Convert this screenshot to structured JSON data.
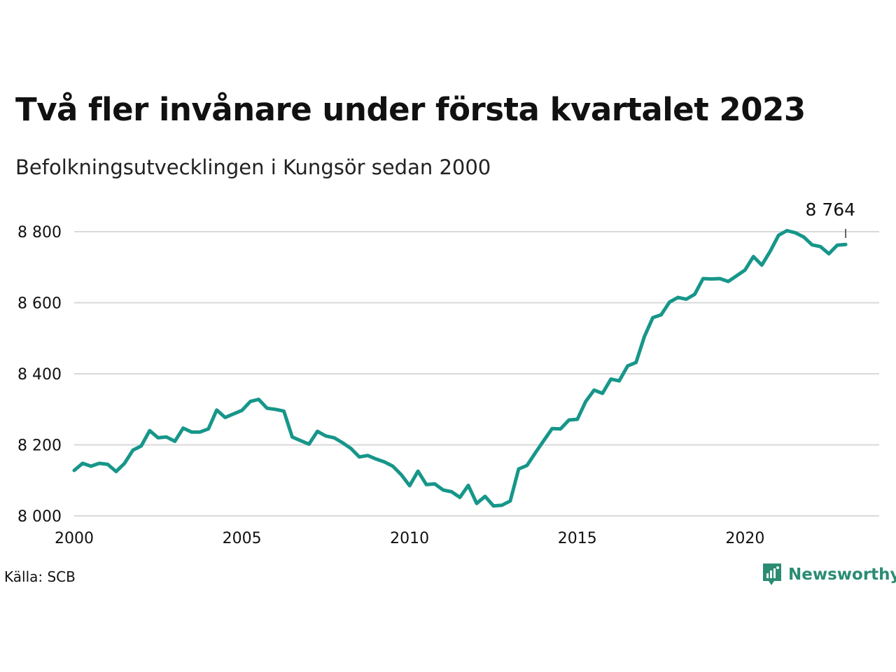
{
  "chart_data": {
    "type": "line",
    "title": "Två fler invånare under första kvartalet 2023",
    "subtitle": "Befolkningsutvecklingen i Kungsör sedan 2000",
    "xlabel": "",
    "ylabel": "",
    "xlim": [
      2000,
      2024
    ],
    "ylim": [
      8000,
      8850
    ],
    "x_ticks": [
      2000,
      2005,
      2010,
      2015,
      2020
    ],
    "x_tick_labels": [
      "2000",
      "2005",
      "2010",
      "2015",
      "2020"
    ],
    "y_ticks": [
      8000,
      8200,
      8400,
      8600,
      8800
    ],
    "y_tick_labels": [
      "8 000",
      "8 200",
      "8 400",
      "8 600",
      "8 800"
    ],
    "grid": true,
    "legend": "none",
    "end_label": "8 764",
    "series": [
      {
        "color": "#17968a",
        "x": [
          2000.0,
          2000.25,
          2000.5,
          2000.75,
          2001.0,
          2001.25,
          2001.5,
          2001.75,
          2002.0,
          2002.25,
          2002.5,
          2002.75,
          2003.0,
          2003.25,
          2003.5,
          2003.75,
          2004.0,
          2004.25,
          2004.5,
          2004.75,
          2005.0,
          2005.25,
          2005.5,
          2005.75,
          2006.0,
          2006.25,
          2006.5,
          2006.75,
          2007.0,
          2007.25,
          2007.5,
          2007.75,
          2008.0,
          2008.25,
          2008.5,
          2008.75,
          2009.0,
          2009.25,
          2009.5,
          2009.75,
          2010.0,
          2010.25,
          2010.5,
          2010.75,
          2011.0,
          2011.25,
          2011.5,
          2011.75,
          2012.0,
          2012.25,
          2012.5,
          2012.75,
          2013.0,
          2013.25,
          2013.5,
          2013.75,
          2014.0,
          2014.25,
          2014.5,
          2014.75,
          2015.0,
          2015.25,
          2015.5,
          2015.75,
          2016.0,
          2016.25,
          2016.5,
          2016.75,
          2017.0,
          2017.25,
          2017.5,
          2017.75,
          2018.0,
          2018.25,
          2018.5,
          2018.75,
          2019.0,
          2019.25,
          2019.5,
          2019.75,
          2020.0,
          2020.25,
          2020.5,
          2020.75,
          2021.0,
          2021.25,
          2021.5,
          2021.75,
          2022.0,
          2022.25,
          2022.5,
          2022.75,
          2023.0
        ],
        "values": [
          8128,
          8148,
          8140,
          8148,
          8145,
          8125,
          8148,
          8185,
          8197,
          8240,
          8220,
          8222,
          8210,
          8247,
          8236,
          8236,
          8245,
          8298,
          8277,
          8287,
          8297,
          8322,
          8328,
          8303,
          8300,
          8295,
          8222,
          8212,
          8202,
          8238,
          8225,
          8220,
          8206,
          8190,
          8166,
          8170,
          8160,
          8152,
          8140,
          8116,
          8085,
          8126,
          8088,
          8090,
          8073,
          8068,
          8052,
          8086,
          8035,
          8055,
          8028,
          8030,
          8042,
          8132,
          8142,
          8178,
          8212,
          8246,
          8245,
          8270,
          8272,
          8322,
          8354,
          8345,
          8385,
          8380,
          8422,
          8432,
          8505,
          8558,
          8566,
          8602,
          8615,
          8610,
          8624,
          8668,
          8667,
          8668,
          8660,
          8676,
          8692,
          8730,
          8706,
          8745,
          8790,
          8803,
          8797,
          8785,
          8763,
          8758,
          8738,
          8762,
          8764
        ]
      }
    ]
  },
  "source": "Källa: SCB",
  "brand": "Newsworthy"
}
